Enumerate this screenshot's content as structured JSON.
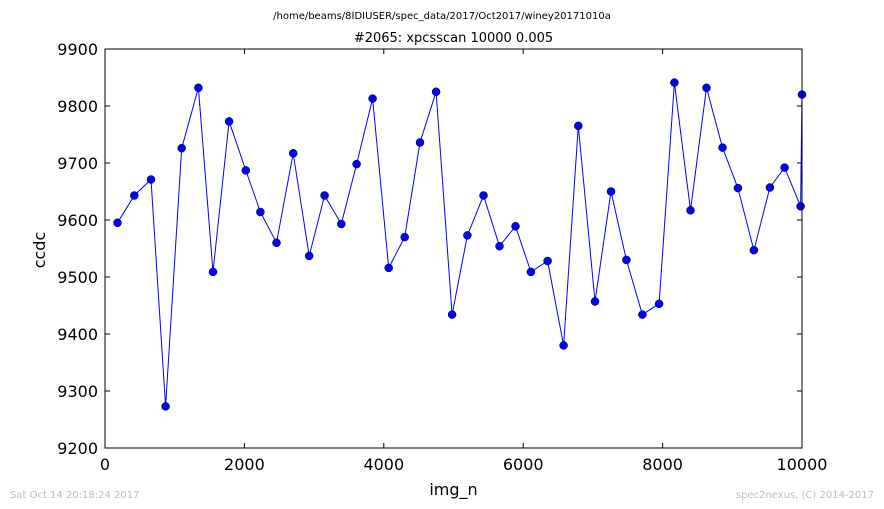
{
  "page": {
    "suptitle": "/home/beams/8IDIUSER/spec_data/2017/Oct2017/winey20171010a",
    "footer_left": "Sat Oct 14 20:18:24 2017",
    "footer_right": "spec2nexus, (C) 2014-2017"
  },
  "chart_data": {
    "type": "line",
    "title": "#2065: xpcsscan 10000 0.005",
    "xlabel": "img_n",
    "ylabel": "ccdc",
    "xlim": [
      0,
      10000
    ],
    "ylim": [
      9200,
      9900
    ],
    "xticks": [
      0,
      2000,
      4000,
      6000,
      8000,
      10000
    ],
    "yticks": [
      9200,
      9300,
      9400,
      9500,
      9600,
      9700,
      9800,
      9900
    ],
    "xtick_labels": [
      "0",
      "2000",
      "4000",
      "6000",
      "8000",
      "10000"
    ],
    "ytick_labels": [
      "9200",
      "9300",
      "9400",
      "9500",
      "9600",
      "9700",
      "9800",
      "9900"
    ],
    "grid": false,
    "line_color": "#0000ff",
    "marker_color": "#0000ff",
    "series": [
      {
        "x": [
          180,
          420,
          660,
          870,
          1100,
          1340,
          1550,
          1780,
          2020,
          2230,
          2460,
          2700,
          2930,
          3150,
          3390,
          3610,
          3840,
          4070,
          4300,
          4520,
          4750,
          4980,
          5200,
          5430,
          5660,
          5890,
          6110,
          6350,
          6580,
          6790,
          7030,
          7260,
          7480,
          7710,
          7950,
          8170,
          8400,
          8630,
          8860,
          9080,
          9310,
          9540,
          9750,
          9980,
          10000
        ],
        "y": [
          9595,
          9643,
          9671,
          9273,
          9726,
          9832,
          9509,
          9773,
          9687,
          9614,
          9560,
          9717,
          9537,
          9643,
          9593,
          9698,
          9813,
          9516,
          9570,
          9736,
          9825,
          9434,
          9573,
          9643,
          9554,
          9589,
          9509,
          9528,
          9380,
          9765,
          9457,
          9650,
          9530,
          9434,
          9453,
          9841,
          9617,
          9832,
          9727,
          9656,
          9547,
          9657,
          9692,
          9624,
          9820
        ]
      }
    ]
  }
}
